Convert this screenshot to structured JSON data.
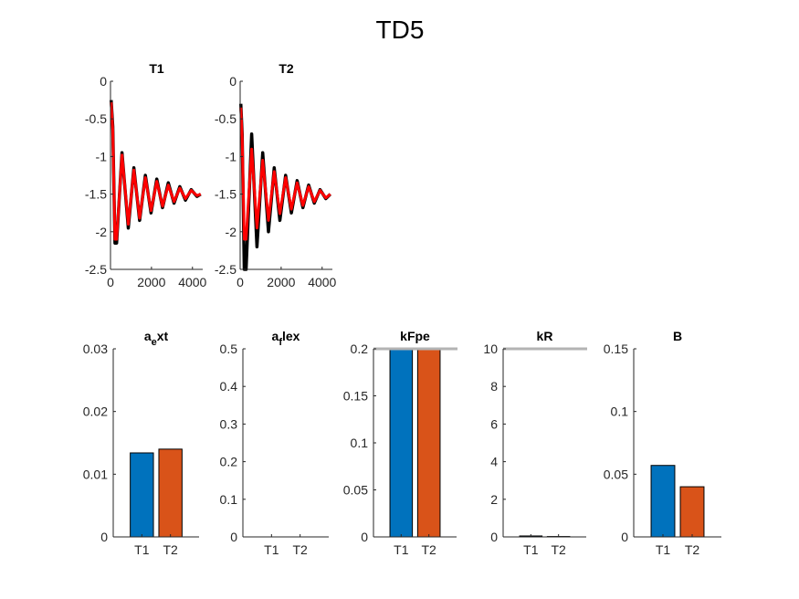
{
  "figure_title": "TD5",
  "chart_data": [
    {
      "type": "line",
      "title": "T1",
      "xlim": [
        0,
        4500
      ],
      "ylim": [
        -2.5,
        0
      ],
      "xticks": [
        0,
        2000,
        4000
      ],
      "xtick_labels": [
        "0",
        "2000",
        "4000"
      ],
      "yticks": [
        0,
        -0.5,
        -1,
        -1.5,
        -2,
        -2.5
      ],
      "ytick_labels": [
        "0",
        "-0.5",
        "-1",
        "-1.5",
        "-2",
        "-2.5"
      ],
      "series": [
        {
          "color": "#000000",
          "x": [
            30,
            110,
            220,
            300,
            560,
            870,
            1140,
            1420,
            1700,
            1980,
            2260,
            2540,
            2820,
            3100,
            3380,
            3660,
            3940,
            4220,
            4400
          ],
          "y": [
            -0.25,
            -0.6,
            -2.15,
            -2.15,
            -0.95,
            -1.95,
            -1.15,
            -1.85,
            -1.25,
            -1.75,
            -1.3,
            -1.68,
            -1.35,
            -1.62,
            -1.4,
            -1.58,
            -1.44,
            -1.53,
            -1.5
          ]
        },
        {
          "color": "#ff0000",
          "x": [
            30,
            110,
            220,
            300,
            560,
            870,
            1140,
            1420,
            1700,
            1980,
            2260,
            2540,
            2820,
            3100,
            3380,
            3660,
            3940,
            4220,
            4400
          ],
          "y": [
            -0.28,
            -0.65,
            -2.1,
            -2.1,
            -0.98,
            -1.9,
            -1.18,
            -1.82,
            -1.28,
            -1.72,
            -1.33,
            -1.66,
            -1.38,
            -1.6,
            -1.42,
            -1.56,
            -1.45,
            -1.52,
            -1.5
          ]
        }
      ]
    },
    {
      "type": "line",
      "title": "T2",
      "xlim": [
        0,
        4500
      ],
      "ylim": [
        -2.5,
        0
      ],
      "xticks": [
        0,
        2000,
        4000
      ],
      "xtick_labels": [
        "0",
        "2000",
        "4000"
      ],
      "yticks": [
        0,
        -0.5,
        -1,
        -1.5,
        -2,
        -2.5
      ],
      "ytick_labels": [
        "0",
        "-0.5",
        "-1",
        "-1.5",
        "-2",
        "-2.5"
      ],
      "series": [
        {
          "color": "#000000",
          "x": [
            30,
            100,
            200,
            290,
            560,
            820,
            1100,
            1380,
            1660,
            1940,
            2220,
            2500,
            2780,
            3060,
            3340,
            3620,
            3900,
            4180,
            4400
          ],
          "y": [
            -0.3,
            -0.7,
            -2.5,
            -2.5,
            -0.7,
            -2.2,
            -0.95,
            -2.0,
            -1.15,
            -1.85,
            -1.25,
            -1.75,
            -1.32,
            -1.68,
            -1.38,
            -1.62,
            -1.44,
            -1.56,
            -1.5
          ]
        },
        {
          "color": "#ff0000",
          "x": [
            30,
            100,
            200,
            290,
            560,
            820,
            1100,
            1380,
            1660,
            1940,
            2220,
            2500,
            2780,
            3060,
            3340,
            3620,
            3900,
            4180,
            4400
          ],
          "y": [
            -0.35,
            -0.75,
            -2.1,
            -2.1,
            -0.9,
            -1.95,
            -1.05,
            -1.85,
            -1.2,
            -1.76,
            -1.28,
            -1.7,
            -1.35,
            -1.65,
            -1.4,
            -1.6,
            -1.45,
            -1.55,
            -1.5
          ]
        }
      ]
    },
    {
      "type": "bar",
      "title": {
        "base": "a",
        "sub": "e",
        "rest": "xt"
      },
      "categories": [
        "T1",
        "T2"
      ],
      "values": [
        0.0134,
        0.014
      ],
      "colors": [
        "#0072bd",
        "#d95319"
      ],
      "ylim": [
        0,
        0.03
      ],
      "yticks": [
        0,
        0.01,
        0.02,
        0.03
      ],
      "ytick_labels": [
        "0",
        "0.01",
        "0.02",
        "0.03"
      ],
      "bound_line": null
    },
    {
      "type": "bar",
      "title": {
        "base": "a",
        "sub": "f",
        "rest": "lex"
      },
      "categories": [
        "T1",
        "T2"
      ],
      "values": [
        0,
        0
      ],
      "colors": [
        "#0072bd",
        "#d95319"
      ],
      "ylim": [
        0,
        0.5
      ],
      "yticks": [
        0,
        0.1,
        0.2,
        0.3,
        0.4,
        0.5
      ],
      "ytick_labels": [
        "0",
        "0.1",
        "0.2",
        "0.3",
        "0.4",
        "0.5"
      ],
      "bound_line": null
    },
    {
      "type": "bar",
      "title": {
        "base": "kFpe",
        "sub": "",
        "rest": ""
      },
      "categories": [
        "T1",
        "T2"
      ],
      "values": [
        0.2,
        0.2
      ],
      "colors": [
        "#0072bd",
        "#d95319"
      ],
      "ylim": [
        0,
        0.2
      ],
      "yticks": [
        0,
        0.05,
        0.1,
        0.15,
        0.2
      ],
      "ytick_labels": [
        "0",
        "0.05",
        "0.1",
        "0.15",
        "0.2"
      ],
      "bound_line": 0.2
    },
    {
      "type": "bar",
      "title": {
        "base": "kR",
        "sub": "",
        "rest": ""
      },
      "categories": [
        "T1",
        "T2"
      ],
      "values": [
        0.05,
        0.02
      ],
      "colors": [
        "#0072bd",
        "#d95319"
      ],
      "ylim": [
        0,
        10
      ],
      "yticks": [
        0,
        2,
        4,
        6,
        8,
        10
      ],
      "ytick_labels": [
        "0",
        "2",
        "4",
        "6",
        "8",
        "10"
      ],
      "bound_line": 10
    },
    {
      "type": "bar",
      "title": {
        "base": "B",
        "sub": "",
        "rest": ""
      },
      "categories": [
        "T1",
        "T2"
      ],
      "values": [
        0.057,
        0.04
      ],
      "colors": [
        "#0072bd",
        "#d95319"
      ],
      "ylim": [
        0,
        0.15
      ],
      "yticks": [
        0,
        0.05,
        0.1,
        0.15
      ],
      "ytick_labels": [
        "0",
        "0.05",
        "0.1",
        "0.15"
      ],
      "bound_line": null
    }
  ]
}
